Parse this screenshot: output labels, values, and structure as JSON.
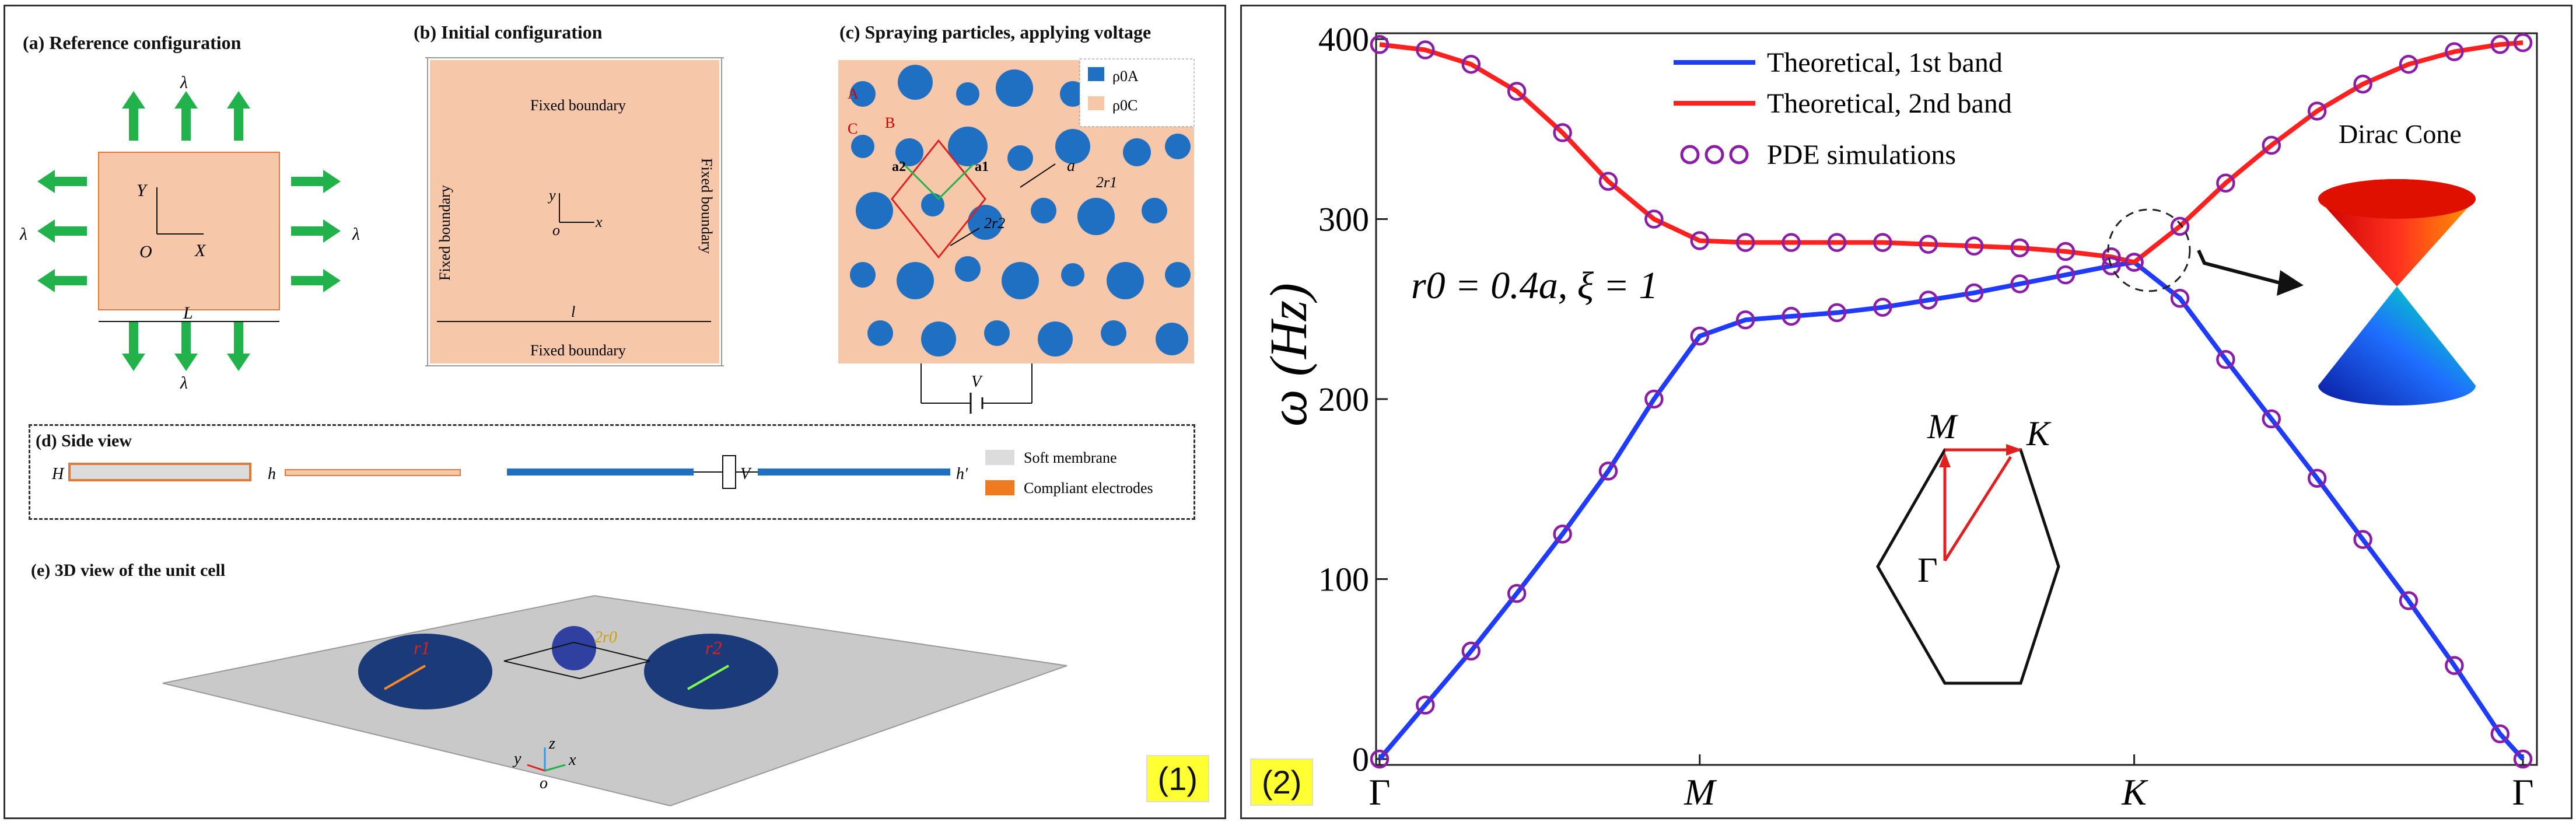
{
  "panel1": {
    "tag": "(1)",
    "a": {
      "title": "(a) Reference configuration",
      "lambda": "λ",
      "Y": "Y",
      "X": "X",
      "O": "O",
      "L": "L"
    },
    "b": {
      "title": "(b) Initial configuration",
      "top": "Fixed boundary",
      "bottom": "Fixed boundary",
      "left": "Fixed boundary",
      "right": "Fixed boundary",
      "y": "y",
      "x": "x",
      "o": "o",
      "l": "l"
    },
    "c": {
      "title": "(c) Spraying particles, applying voltage",
      "legend": [
        "ρ0A",
        "ρ0C"
      ],
      "A": "A",
      "B": "B",
      "C": "C",
      "a1": "a1",
      "a2": "a2",
      "a": "a",
      "2r1": "2r1",
      "2r2": "2r2",
      "V": "V"
    },
    "d": {
      "title": "(d) Side view",
      "H": "H",
      "h": "h",
      "hp": "h′",
      "V": "V",
      "legend_membrane": "Soft membrane",
      "legend_electrodes": "Compliant electrodes"
    },
    "e": {
      "title": "(e) 3D view of the unit cell",
      "r1": "r1",
      "r2": "r2",
      "2r0": "2r0",
      "y": "y",
      "z": "z",
      "x": "x",
      "o": "o"
    }
  },
  "panel2": {
    "tag": "(2)",
    "param": "r0 = 0.4a,  ξ = 1",
    "dirac": "Dirac Cone",
    "bz": {
      "M": "M",
      "K": "K",
      "G": "Γ"
    },
    "colors": {
      "band1": "#1f3bff",
      "band2": "#ff2020",
      "sim": "#8a1fa6"
    }
  },
  "chart_data": {
    "type": "line",
    "title": "",
    "xlabel": "",
    "ylabel": "ω (Hz)",
    "ylim": [
      0,
      400
    ],
    "yticks": [
      0,
      100,
      200,
      300,
      400
    ],
    "xticks": [
      {
        "label": "Γ",
        "x": 0
      },
      {
        "label": "M",
        "x": 0.28
      },
      {
        "label": "K",
        "x": 0.66
      },
      {
        "label": "Γ",
        "x": 1
      }
    ],
    "series": [
      {
        "name": "Theoretical, 1st band",
        "x": [
          0,
          0.04,
          0.08,
          0.12,
          0.16,
          0.2,
          0.24,
          0.28,
          0.32,
          0.36,
          0.4,
          0.44,
          0.48,
          0.52,
          0.56,
          0.6,
          0.64,
          0.66,
          0.7,
          0.74,
          0.78,
          0.82,
          0.86,
          0.9,
          0.94,
          0.98,
          1.0
        ],
        "values": [
          0,
          30,
          60,
          92,
          125,
          160,
          200,
          235,
          244,
          246,
          248,
          251,
          255,
          259,
          264,
          269,
          274,
          276,
          256,
          222,
          189,
          156,
          122,
          88,
          52,
          14,
          0
        ]
      },
      {
        "name": "Theoretical, 2nd band",
        "x": [
          0,
          0.04,
          0.08,
          0.12,
          0.16,
          0.2,
          0.24,
          0.28,
          0.32,
          0.36,
          0.4,
          0.44,
          0.48,
          0.52,
          0.56,
          0.6,
          0.64,
          0.66,
          0.7,
          0.74,
          0.78,
          0.82,
          0.86,
          0.9,
          0.94,
          0.98,
          1.0
        ],
        "values": [
          397,
          394,
          386,
          371,
          348,
          321,
          300,
          288,
          287,
          287,
          287,
          287,
          286,
          285,
          284,
          282,
          279,
          276,
          296,
          320,
          341,
          360,
          375,
          386,
          393,
          397,
          398
        ]
      },
      {
        "name": "PDE simulations",
        "x": [
          0,
          0.04,
          0.08,
          0.12,
          0.16,
          0.2,
          0.24,
          0.28,
          0.32,
          0.36,
          0.4,
          0.44,
          0.48,
          0.52,
          0.56,
          0.6,
          0.64,
          0.66,
          0.7,
          0.74,
          0.78,
          0.82,
          0.86,
          0.9,
          0.94,
          0.98,
          1.0
        ],
        "values_band1": [
          0,
          30,
          60,
          92,
          125,
          160,
          200,
          235,
          244,
          246,
          248,
          251,
          255,
          259,
          264,
          269,
          274,
          276,
          256,
          222,
          189,
          156,
          122,
          88,
          52,
          14,
          0
        ],
        "values_band2": [
          397,
          394,
          386,
          371,
          348,
          321,
          300,
          288,
          287,
          287,
          287,
          287,
          286,
          285,
          284,
          282,
          279,
          276,
          296,
          320,
          341,
          360,
          375,
          386,
          393,
          397,
          398
        ]
      }
    ],
    "legend": [
      "Theoretical, 1st band",
      "Theoretical, 2nd band",
      "PDE simulations"
    ],
    "legend_placement": "top-center"
  }
}
